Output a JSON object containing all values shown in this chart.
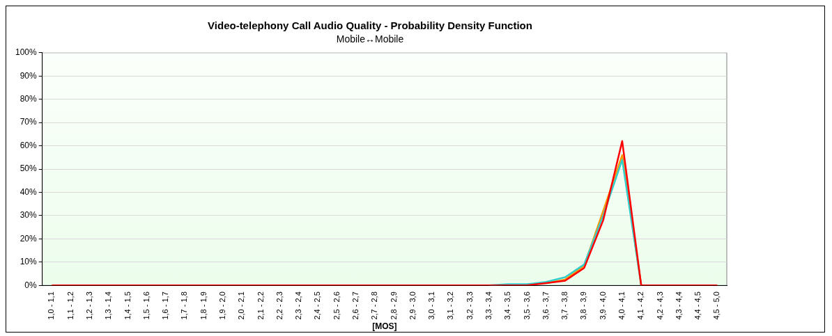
{
  "chart_data": {
    "type": "line",
    "title": "Video-telephony Call Audio Quality - Probability Density Function",
    "subtitle": "Mobile↔Mobile",
    "xlabel": "[MOS]",
    "categories": [
      "1,0 - 1,1",
      "1,1 - 1,2",
      "1,2 - 1,3",
      "1,3 - 1,4",
      "1,4 - 1,5",
      "1,5 - 1,6",
      "1,6 - 1,7",
      "1,7 - 1,8",
      "1,8 - 1,9",
      "1,9 - 2,0",
      "2,0 - 2,1",
      "2,1 - 2,2",
      "2,2 - 2,3",
      "2,3 - 2,4",
      "2,4 - 2,5",
      "2,5 - 2,6",
      "2,6 - 2,7",
      "2,7 - 2,8",
      "2,8 - 2,9",
      "2,9 - 3,0",
      "3,0 - 3,1",
      "3,1 - 3,2",
      "3,2 - 3,3",
      "3,3 - 3,4",
      "3,4 - 3,5",
      "3,5 - 3,6",
      "3,6 - 3,7",
      "3,7 - 3,8",
      "3,8 - 3,9",
      "3,9 - 4,0",
      "4,0 - 4,1",
      "4,1 - 4,2",
      "4,2 - 4,3",
      "4,3 - 4,4",
      "4,4 - 4,5",
      "4,5 - 5,0"
    ],
    "series": [
      {
        "color": "#ff9900",
        "values": [
          null,
          null,
          null,
          null,
          null,
          null,
          null,
          null,
          null,
          null,
          null,
          null,
          null,
          null,
          null,
          null,
          null,
          null,
          null,
          null,
          null,
          null,
          null,
          null,
          null,
          null,
          1,
          2.5,
          8.5,
          32,
          56,
          0,
          null,
          null,
          null,
          null
        ]
      },
      {
        "color": "#33cccc",
        "values": [
          null,
          null,
          null,
          null,
          null,
          null,
          null,
          null,
          null,
          null,
          null,
          null,
          null,
          null,
          null,
          null,
          null,
          null,
          null,
          null,
          null,
          null,
          null,
          0,
          0.5,
          0.5,
          1.5,
          3.5,
          9,
          30,
          54,
          0,
          null,
          null,
          null,
          null
        ]
      },
      {
        "color": "#ff0000",
        "values": [
          0,
          0,
          0,
          0,
          0,
          0,
          0,
          0,
          0,
          0,
          0,
          0,
          0,
          0,
          0,
          0,
          0,
          0,
          0,
          0,
          0,
          0,
          0,
          0,
          0,
          0,
          1,
          2,
          7.5,
          28,
          62,
          0,
          0,
          0,
          0,
          0
        ]
      }
    ],
    "ylim": [
      0,
      100
    ],
    "yticks": [
      {
        "value": 0,
        "label": "0%"
      },
      {
        "value": 10,
        "label": "10%"
      },
      {
        "value": 20,
        "label": "20%"
      },
      {
        "value": 30,
        "label": "30%"
      },
      {
        "value": 40,
        "label": "40%"
      },
      {
        "value": 50,
        "label": "50%"
      },
      {
        "value": 60,
        "label": "60%"
      },
      {
        "value": 70,
        "label": "70%"
      },
      {
        "value": 80,
        "label": "80%"
      },
      {
        "value": 90,
        "label": "90%"
      },
      {
        "value": 100,
        "label": "100%"
      }
    ],
    "grid": "y",
    "legend": false,
    "marker": "none",
    "line_style": "solid"
  }
}
